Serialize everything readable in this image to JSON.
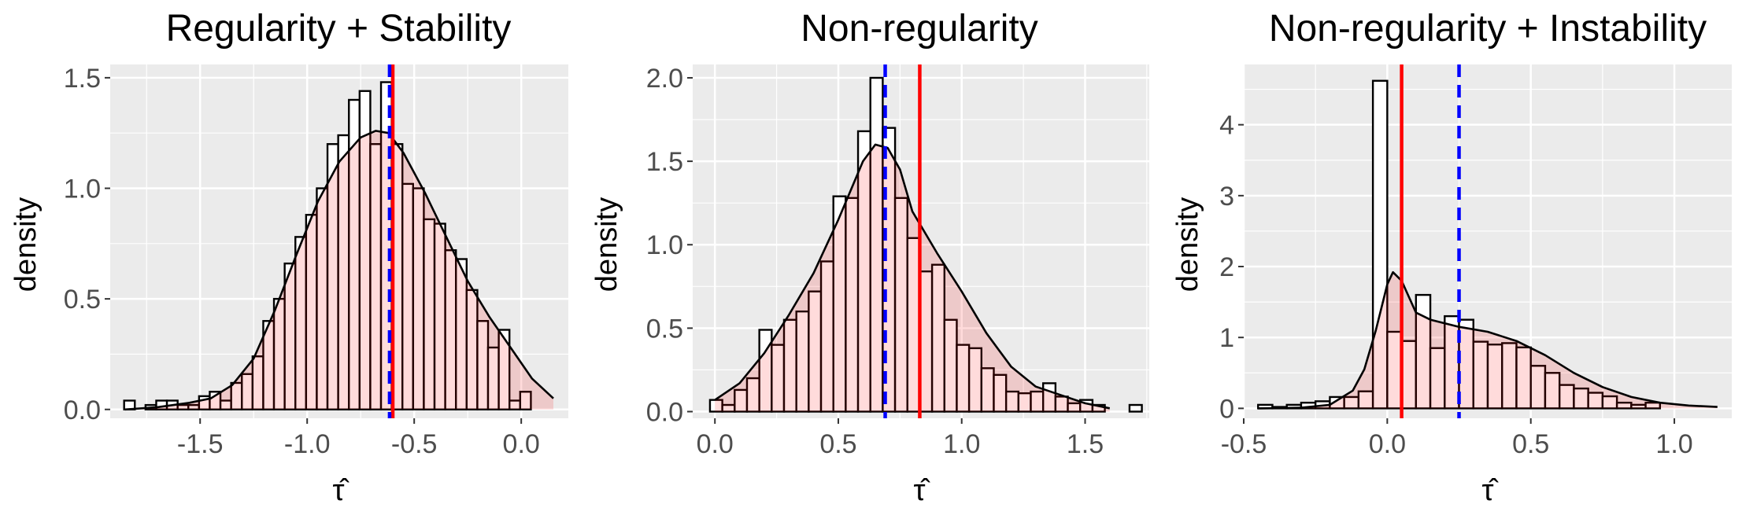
{
  "chart_data": [
    {
      "type": "histogram",
      "title": "Regularity + Stability",
      "xlabel": "τ̂",
      "ylabel": "density",
      "xlim": [
        -1.92,
        0.22
      ],
      "ylim": [
        -0.04,
        1.56
      ],
      "xticks": [
        "-1.5",
        "-1.0",
        "-0.5",
        "0.0"
      ],
      "yticks": [
        "0.0",
        "0.5",
        "1.0",
        "1.5"
      ],
      "xtick_values": [
        -1.5,
        -1.0,
        -0.5,
        0.0
      ],
      "ytick_values": [
        0.0,
        0.5,
        1.0,
        1.5
      ],
      "grid": true,
      "bins": {
        "start": -1.855,
        "width": 0.05,
        "density": [
          0.04,
          0.0,
          0.02,
          0.04,
          0.04,
          0.02,
          0.02,
          0.06,
          0.08,
          0.04,
          0.12,
          0.16,
          0.24,
          0.4,
          0.5,
          0.66,
          0.78,
          0.88,
          1.0,
          1.2,
          1.24,
          1.4,
          1.44,
          1.2,
          1.48,
          1.2,
          1.02,
          1.0,
          0.86,
          0.84,
          0.72,
          0.68,
          0.54,
          0.4,
          0.28,
          0.36,
          0.04,
          0.08
        ]
      },
      "density_curve": {
        "x": [
          -1.85,
          -1.7,
          -1.55,
          -1.45,
          -1.35,
          -1.25,
          -1.15,
          -1.05,
          -0.95,
          -0.85,
          -0.75,
          -0.68,
          -0.62,
          -0.55,
          -0.45,
          -0.35,
          -0.25,
          -0.15,
          -0.05,
          0.05,
          0.15
        ],
        "y": [
          0.0,
          0.01,
          0.03,
          0.05,
          0.11,
          0.23,
          0.45,
          0.7,
          0.94,
          1.12,
          1.23,
          1.26,
          1.25,
          1.16,
          0.98,
          0.78,
          0.58,
          0.42,
          0.28,
          0.14,
          0.05
        ]
      },
      "vlines": [
        {
          "x": -0.6,
          "color": "#ff0000",
          "style": "solid"
        },
        {
          "x": -0.615,
          "color": "#0000ff",
          "style": "dashed"
        }
      ]
    },
    {
      "type": "histogram",
      "title": "Non-regularity",
      "xlabel": "τ̂",
      "ylabel": "density",
      "xlim": [
        -0.09,
        1.76
      ],
      "ylim": [
        -0.04,
        2.08
      ],
      "xticks": [
        "0.0",
        "0.5",
        "1.0",
        "1.5"
      ],
      "yticks": [
        "0.0",
        "0.5",
        "1.0",
        "1.5",
        "2.0"
      ],
      "xtick_values": [
        0.0,
        0.5,
        1.0,
        1.5
      ],
      "ytick_values": [
        0.0,
        0.5,
        1.0,
        1.5,
        2.0
      ],
      "grid": true,
      "bins": {
        "start": -0.02,
        "width": 0.05,
        "density": [
          0.07,
          0.04,
          0.13,
          0.2,
          0.49,
          0.4,
          0.55,
          0.6,
          0.72,
          0.9,
          1.29,
          1.28,
          1.68,
          2.0,
          1.7,
          1.28,
          1.04,
          0.84,
          0.88,
          0.55,
          0.4,
          0.38,
          0.26,
          0.22,
          0.12,
          0.11,
          0.12,
          0.17,
          0.09,
          0.05,
          0.07,
          0.04,
          0.0,
          0.0,
          0.04
        ]
      },
      "density_curve": {
        "x": [
          0.0,
          0.1,
          0.2,
          0.3,
          0.4,
          0.5,
          0.6,
          0.65,
          0.7,
          0.75,
          0.8,
          0.9,
          1.0,
          1.1,
          1.2,
          1.3,
          1.4,
          1.5,
          1.6
        ],
        "y": [
          0.07,
          0.17,
          0.35,
          0.58,
          0.83,
          1.15,
          1.5,
          1.6,
          1.58,
          1.45,
          1.2,
          0.95,
          0.72,
          0.47,
          0.27,
          0.15,
          0.1,
          0.05,
          0.02
        ]
      },
      "vlines": [
        {
          "x": 0.83,
          "color": "#ff0000",
          "style": "solid"
        },
        {
          "x": 0.69,
          "color": "#0000ff",
          "style": "dashed"
        }
      ]
    },
    {
      "type": "histogram",
      "title": "Non-regularity + Instability",
      "xlabel": "τ̂",
      "ylabel": "density",
      "xlim": [
        -0.5,
        1.2
      ],
      "ylim": [
        -0.14,
        4.85
      ],
      "xticks": [
        "-0.5",
        "0.0",
        "0.5",
        "1.0"
      ],
      "yticks": [
        "0",
        "1",
        "2",
        "3",
        "4"
      ],
      "xtick_values": [
        -0.5,
        0.0,
        0.5,
        1.0
      ],
      "ytick_values": [
        0,
        1,
        2,
        3,
        4
      ],
      "grid": true,
      "bins": {
        "start": -0.45,
        "width": 0.05,
        "density": [
          0.05,
          0.02,
          0.05,
          0.08,
          0.1,
          0.16,
          0.16,
          0.24,
          4.62,
          1.08,
          0.95,
          1.6,
          0.85,
          1.3,
          1.25,
          0.94,
          0.9,
          0.92,
          0.86,
          0.6,
          0.5,
          0.33,
          0.28,
          0.22,
          0.17,
          0.08,
          0.05,
          0.08
        ]
      },
      "density_curve": {
        "x": [
          -0.45,
          -0.3,
          -0.2,
          -0.12,
          -0.08,
          -0.04,
          0.0,
          0.02,
          0.05,
          0.1,
          0.15,
          0.25,
          0.35,
          0.45,
          0.55,
          0.65,
          0.75,
          0.85,
          0.95,
          1.05,
          1.15
        ],
        "y": [
          0.0,
          0.01,
          0.05,
          0.25,
          0.55,
          1.1,
          1.75,
          1.92,
          1.8,
          1.35,
          1.25,
          1.15,
          1.08,
          0.95,
          0.75,
          0.5,
          0.3,
          0.16,
          0.08,
          0.04,
          0.02
        ]
      },
      "vlines": [
        {
          "x": 0.05,
          "color": "#ff0000",
          "style": "solid"
        },
        {
          "x": 0.25,
          "color": "#0000ff",
          "style": "dashed"
        }
      ]
    }
  ]
}
